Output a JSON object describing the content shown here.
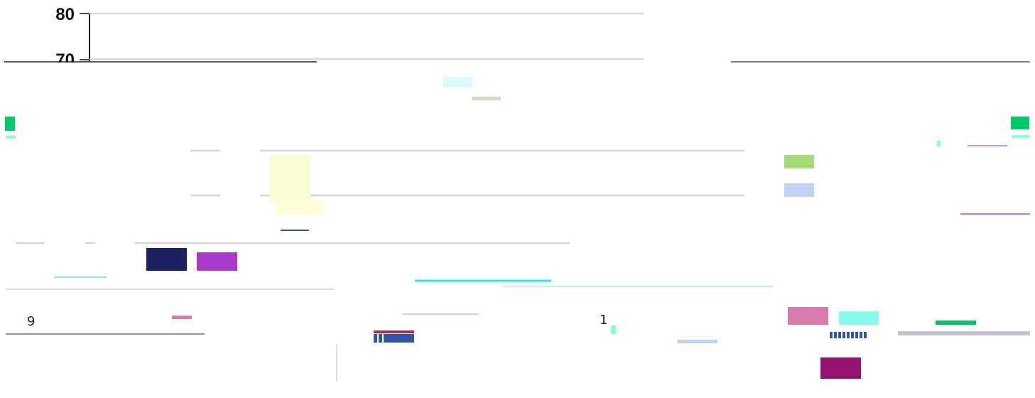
{
  "chart_data": {
    "type": "bar",
    "title": "",
    "xlabel": "",
    "ylabel": "",
    "y_ticks": [
      "80",
      "70"
    ],
    "ylim": [
      70,
      80
    ],
    "grid": true,
    "legend": "none",
    "stray_labels": [
      "9",
      "1"
    ],
    "fragment_colors": [
      "#02c96a",
      "#8afde0",
      "#dbfbfe",
      "#dcd5c2",
      "#fafcd6",
      "#fefdd7",
      "#a5db76",
      "#bfd3f5",
      "#1c2161",
      "#aa3acb",
      "#22e9f4",
      "#d87aab",
      "#88faea",
      "#01c46c",
      "#ab2f49",
      "#3156a8",
      "#961371",
      "#d66a94"
    ]
  }
}
